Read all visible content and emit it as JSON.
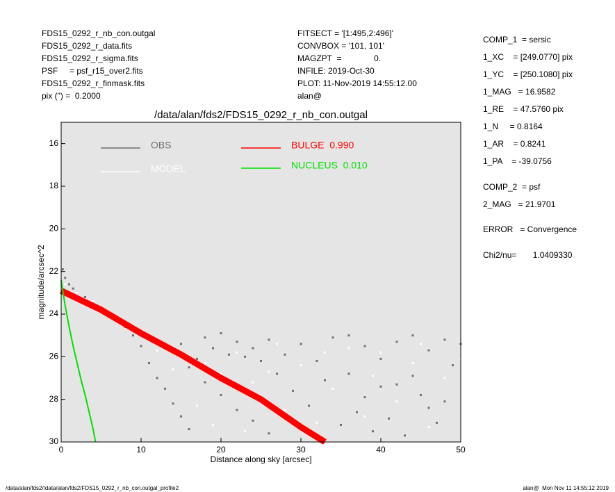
{
  "header_left": [
    "FDS15_0292_r_nb_con.outgal",
    "FDS15_0292_r_data.fits",
    "FDS15_0292_r_sigma.fits",
    "PSF     = psf_r15_over2.fits",
    "FDS15_0292_r_finmask.fits",
    "pix (\") =  0.2000"
  ],
  "header_middle": [
    "FITSECT = '[1:495,2:496]'",
    "CONVBOX = '101, 101'",
    "MAGZPT  =              0.",
    "INFILE: 2019-Oct-30",
    "PLOT: 11-Nov-2019 14:55:12.00",
    "alan@"
  ],
  "params": [
    "COMP_1  = sersic",
    "1_XC    = [249.0770] pix",
    "1_YC    = [250.1080] pix",
    "1_MAG   = 16.9582",
    "1_RE    = 47.5760 pix",
    "1_N     = 0.8164",
    "1_AR    = 0.8241",
    "1_PA    = -39.0756",
    "COMP_2  = psf",
    "2_MAG   = 21.9701",
    "ERROR   = Convergence",
    "Chi2/nu=       1.0409330"
  ],
  "footer_left": "/data/alan/fds2//data/alan/fds2/FDS15_0292_r_nb_con.outgal_profile2",
  "footer_right": "alan@  Mon Nov 11 14:55:12 2019",
  "chart_data": {
    "type": "scatter",
    "title": "/data/alan/fds2/FDS15_0292_r_nb_con.outgal",
    "x_label": "Distance along sky [arcsec]",
    "y_label": "magnitude/arcsec^2",
    "xlim": [
      0,
      50
    ],
    "ylim": [
      30,
      15
    ],
    "xticks": [
      0,
      10,
      20,
      30,
      40,
      50
    ],
    "yticks": [
      16,
      18,
      20,
      22,
      24,
      26,
      28,
      30
    ],
    "background": "#e5e5e5",
    "series": [
      {
        "name": "OBS",
        "color": "#707070",
        "mode": "points",
        "x": [
          0.2,
          0.5,
          1,
          1.5,
          2,
          3,
          4,
          5,
          6,
          7,
          8,
          9,
          10,
          11,
          12,
          13,
          14,
          15,
          16,
          12,
          14,
          16,
          18,
          20,
          22,
          24,
          26,
          18,
          20,
          22,
          24,
          26,
          28,
          30,
          32,
          34,
          36,
          38,
          40,
          42,
          44,
          46,
          48,
          50,
          31,
          33,
          35,
          37,
          39,
          41,
          43,
          45,
          47,
          49,
          29,
          27,
          25,
          23,
          21,
          19,
          17,
          15,
          38,
          42,
          46,
          36,
          40,
          44,
          48
        ],
        "values": [
          21.9,
          22.3,
          22.6,
          22.8,
          23,
          23.2,
          23.5,
          23.7,
          24,
          24.3,
          24.6,
          25,
          25.5,
          26.3,
          27,
          27.5,
          28.2,
          28.8,
          29.4,
          25.2,
          25.8,
          26.5,
          27.2,
          27.8,
          28.5,
          29,
          29.6,
          25.1,
          24.9,
          25.3,
          25.6,
          25.2,
          25.9,
          25.4,
          26.2,
          25.1,
          26.8,
          25.5,
          27.4,
          25.3,
          26.9,
          25.7,
          28.1,
          25.4,
          28.3,
          27.1,
          29.2,
          28.6,
          29.5,
          28.9,
          29.7,
          27.8,
          29.1,
          26.4,
          27.6,
          26.8,
          26.2,
          26.0,
          25.9,
          25.6,
          26.1,
          25.4,
          27.9,
          27.3,
          28.4,
          25.0,
          26.1,
          25.0,
          25.2
        ]
      },
      {
        "name": "MODEL",
        "color": "#ffffff",
        "mode": "points",
        "x": [
          0.5,
          2,
          4,
          6,
          8,
          10,
          12,
          14,
          18,
          20,
          22,
          24,
          26,
          28,
          30,
          32,
          34,
          36,
          38,
          40,
          42,
          44,
          46,
          48,
          50,
          27,
          33,
          39,
          45,
          17,
          19,
          23
        ],
        "values": [
          22.6,
          23,
          23.4,
          23.9,
          24.4,
          24.9,
          25.7,
          26.6,
          26.3,
          26.8,
          25.8,
          27.2,
          26.7,
          28.5,
          26.4,
          29.1,
          27.5,
          25.6,
          28.8,
          25.8,
          28.1,
          26.3,
          29.3,
          27.0,
          26.1,
          25.4,
          25.8,
          26.9,
          25.4,
          28.3,
          29.2,
          29.5
        ]
      },
      {
        "name": "BULGE  0.990",
        "color": "#ff0000",
        "mode": "line",
        "x": [
          0,
          5,
          10,
          15,
          20,
          25,
          30,
          33
        ],
        "values": [
          22.9,
          23.8,
          24.9,
          25.9,
          27.0,
          28.0,
          29.3,
          30
        ]
      },
      {
        "name": "NUCLEUS  0.010",
        "color": "#00e000",
        "mode": "line",
        "x": [
          0,
          0.5,
          1,
          1.5,
          2,
          2.5,
          3,
          3.5,
          4,
          4.3
        ],
        "values": [
          22.4,
          23.6,
          24.6,
          25.5,
          26.3,
          27.1,
          27.8,
          28.6,
          29.4,
          30
        ]
      }
    ]
  }
}
